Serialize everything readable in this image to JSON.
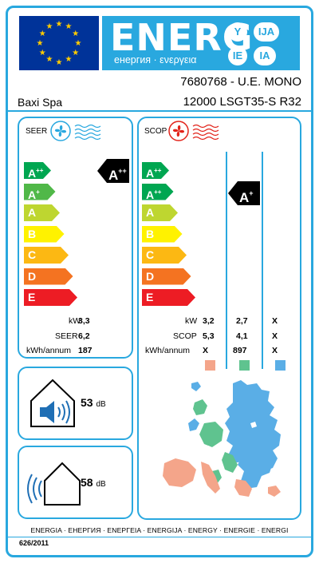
{
  "header": {
    "energy_word": "ENERG",
    "subtitle": "енергия · ενεργεια",
    "lang_badges": [
      "Y",
      "IJA",
      "IE",
      "IA"
    ]
  },
  "supplier": "Baxi Spa",
  "model": {
    "line1": "7680768 - U.E. MONO",
    "line2": "12000 LSGT35-S R32"
  },
  "seer_panel": {
    "title": "SEER",
    "classes": [
      {
        "label": "A",
        "sup": "++",
        "color": "#00a651"
      },
      {
        "label": "A",
        "sup": "+",
        "color": "#50b848"
      },
      {
        "label": "A",
        "sup": "",
        "color": "#bed630"
      },
      {
        "label": "B",
        "sup": "",
        "color": "#fff200"
      },
      {
        "label": "C",
        "sup": "",
        "color": "#fcb813"
      },
      {
        "label": "D",
        "sup": "",
        "color": "#f47321"
      },
      {
        "label": "E",
        "sup": "",
        "color": "#ed1c24"
      }
    ],
    "rating": {
      "label": "A",
      "sup": "++"
    },
    "rows": [
      {
        "label": "kW",
        "value": "3,3"
      },
      {
        "label": "SEER",
        "value": "6,2"
      },
      {
        "label": "kWh/annum",
        "value": "187"
      }
    ]
  },
  "scop_panel": {
    "title": "SCOP",
    "classes": [
      {
        "label": "A",
        "sup": "++",
        "color": "#00a651"
      },
      {
        "label": "A",
        "sup": "++",
        "color": "#00a651"
      },
      {
        "label": "A",
        "sup": "",
        "color": "#bed630"
      },
      {
        "label": "B",
        "sup": "",
        "color": "#fff200"
      },
      {
        "label": "C",
        "sup": "",
        "color": "#fcb813"
      },
      {
        "label": "D",
        "sup": "",
        "color": "#f47321"
      },
      {
        "label": "E",
        "sup": "",
        "color": "#ed1c24"
      }
    ],
    "rating": {
      "label": "A",
      "sup": "+"
    },
    "rows": [
      {
        "label": "kW",
        "values": [
          "3,2",
          "2,7",
          "X"
        ]
      },
      {
        "label": "SCOP",
        "values": [
          "5,3",
          "4,1",
          "X"
        ]
      },
      {
        "label": "kWh/annum",
        "values": [
          "X",
          "897",
          "X"
        ]
      }
    ],
    "zone_colors": [
      "#f4a58a",
      "#5fc38f",
      "#5aaee6"
    ]
  },
  "noise": {
    "indoor": {
      "value": "53",
      "unit": "dB"
    },
    "outdoor": {
      "value": "58",
      "unit": "dB"
    }
  },
  "footer": {
    "names": "ENERGIA · ЕНЕРГИЯ · ΕΝΕΡΓΕΙΑ · ENERGIJA · ENERGY · ENERGIE · ENERGI",
    "regulation": "626/2011"
  },
  "colors": {
    "frame": "#29a8df",
    "eu_blue": "#003399",
    "star": "#ffcc00"
  }
}
